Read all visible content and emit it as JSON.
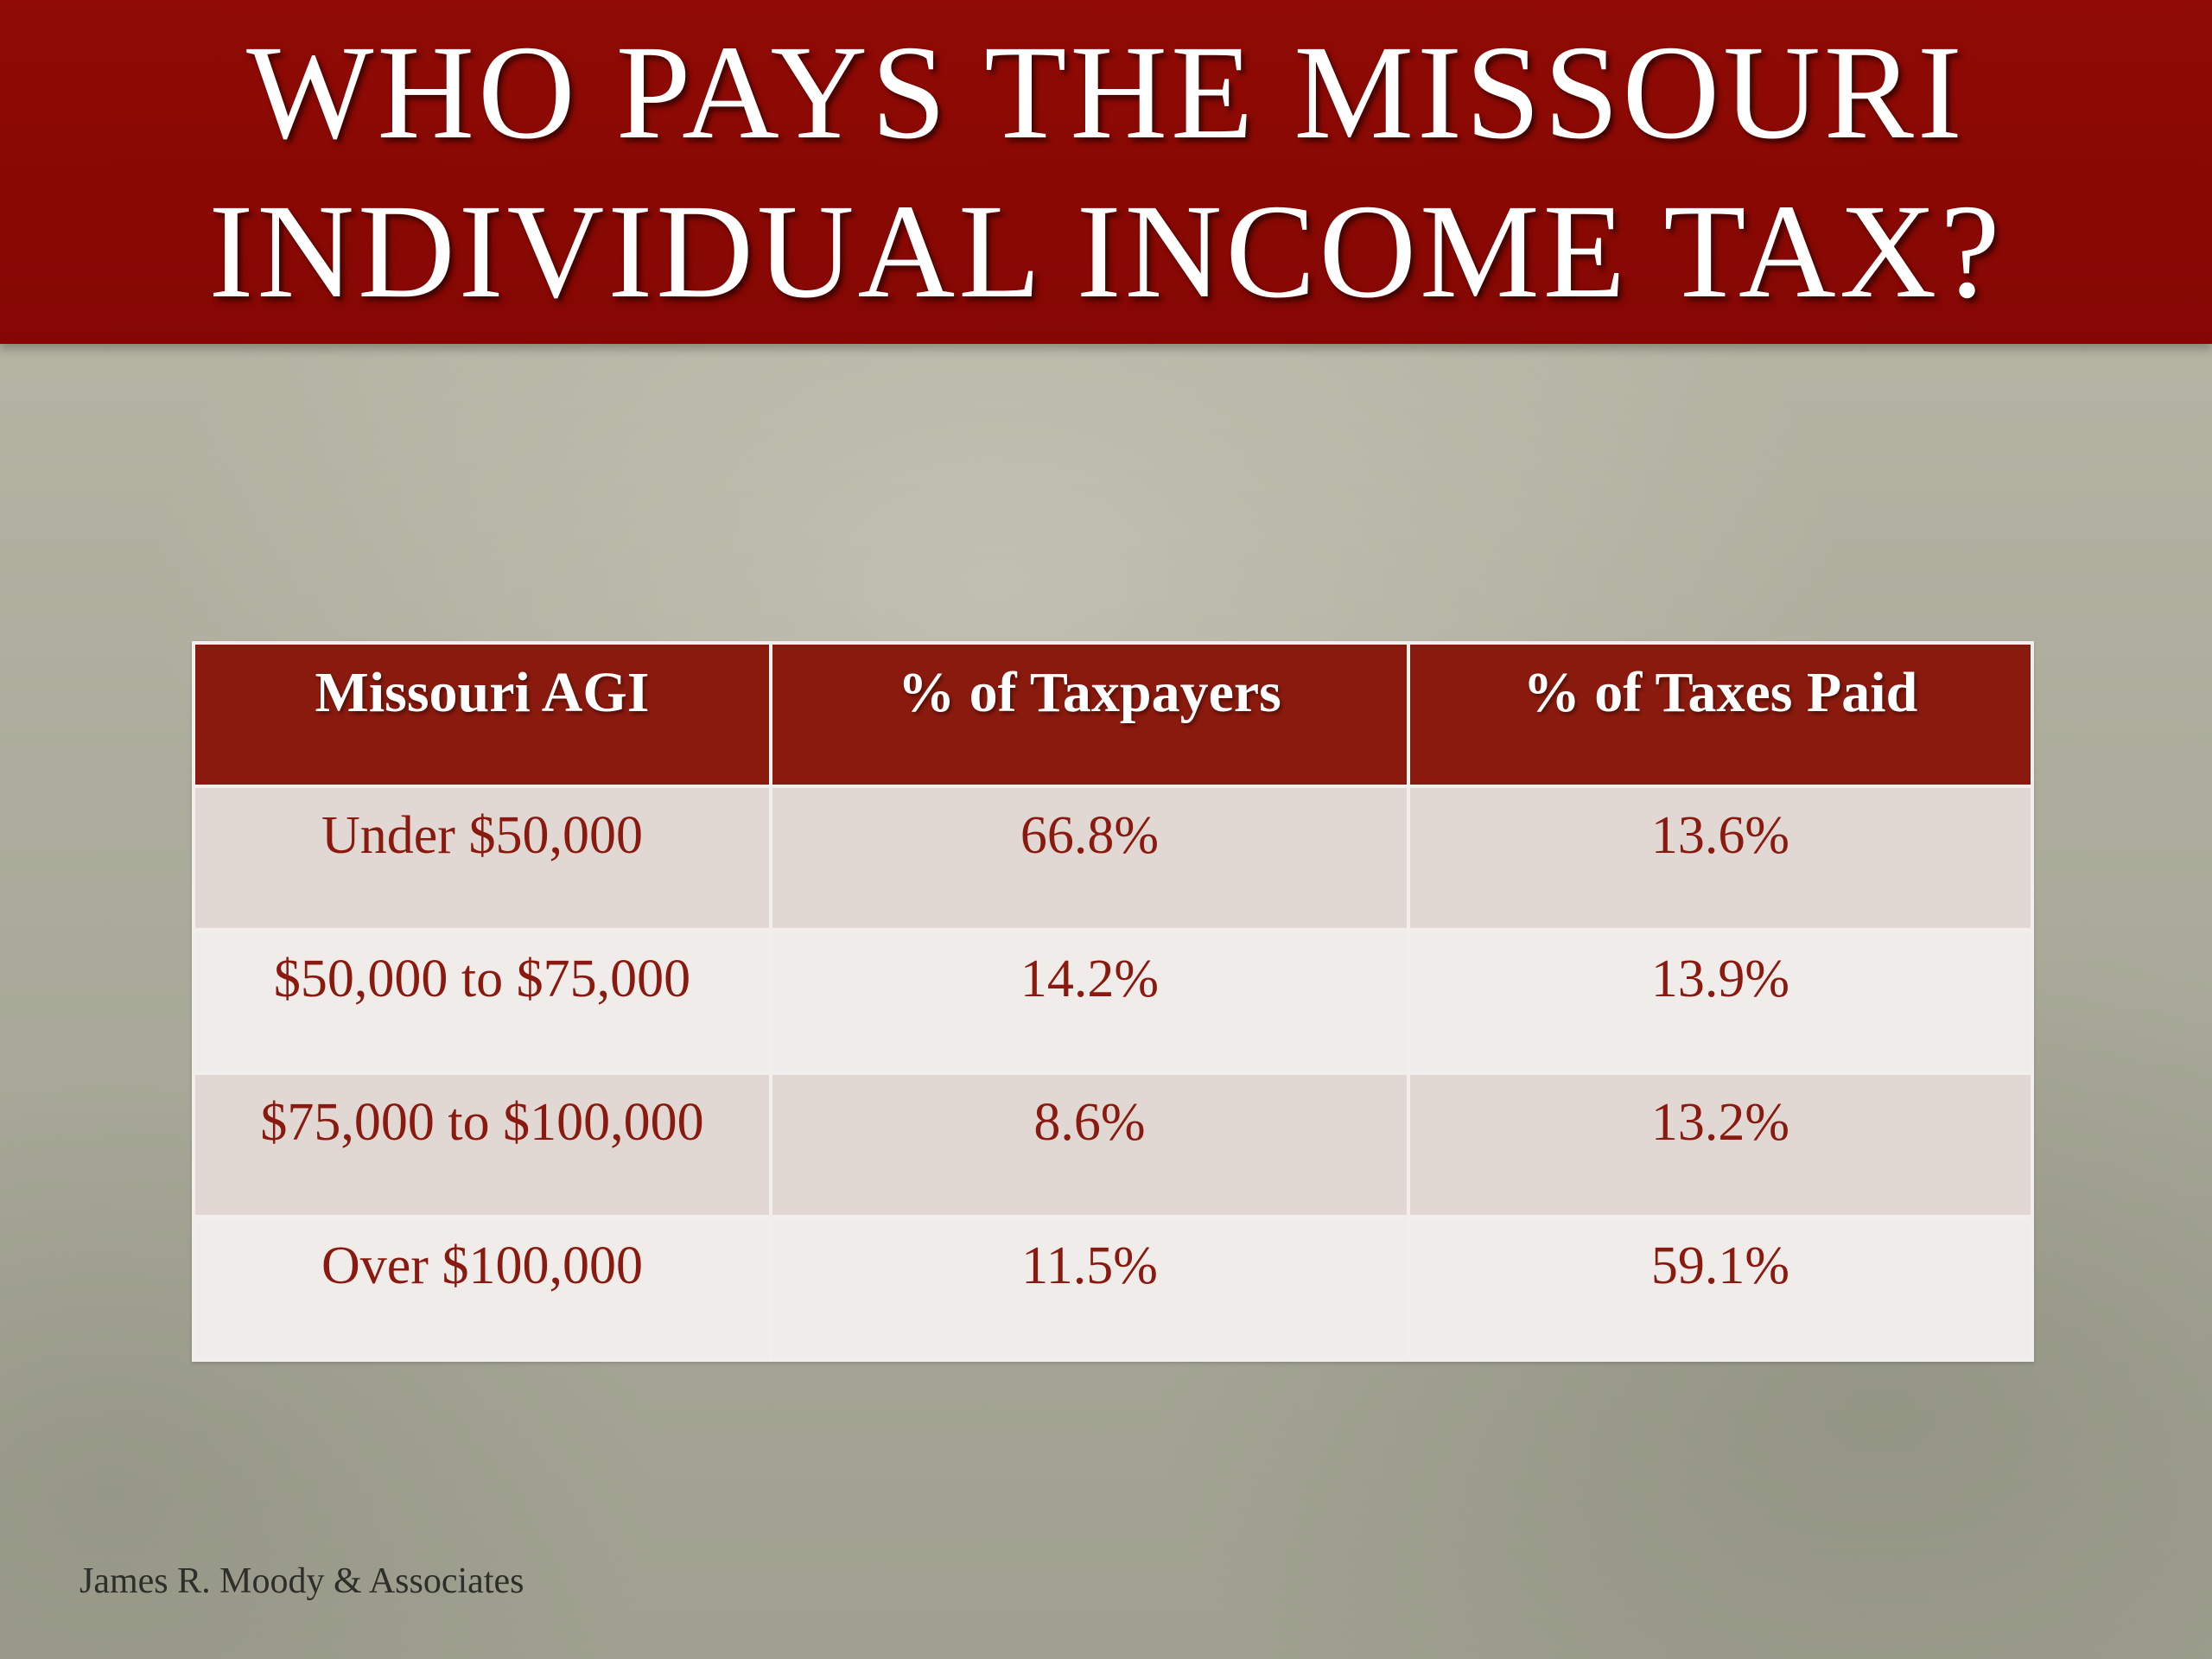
{
  "slide": {
    "title": "Who Pays the Missouri Individual Income Tax?",
    "footer": "James R. Moody & Associates"
  },
  "table": {
    "headers": [
      "Missouri AGI",
      "% of Taxpayers",
      "% of Taxes Paid"
    ],
    "rows": [
      [
        "Under $50,000",
        "66.8%",
        "13.6%"
      ],
      [
        "$50,000 to $75,000",
        "14.2%",
        "13.9%"
      ],
      [
        "$75,000 to $100,000",
        "8.6%",
        "13.2%"
      ],
      [
        "Over $100,000",
        "11.5%",
        "59.1%"
      ]
    ]
  },
  "colors": {
    "title_bar": "#8f0a05",
    "header_cell": "#8b1a0e",
    "cell_text": "#8a1a0f",
    "row_shaded": "#e1d8d3",
    "row_light": "#efece9",
    "background": "#a9aa99"
  }
}
